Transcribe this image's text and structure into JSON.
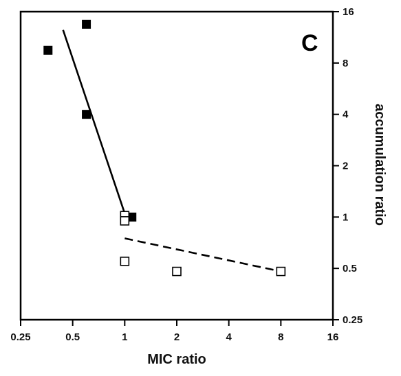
{
  "chart_data": {
    "type": "scatter",
    "panel_label": "C",
    "xlabel": "MIC ratio",
    "ylabel": "accumulation ratio",
    "x_scale": "log2",
    "y_scale": "log2",
    "xlim": [
      0.25,
      16
    ],
    "ylim": [
      0.25,
      16
    ],
    "y_axis_position": "right",
    "x_ticks": [
      "0.25",
      "0.5",
      "1",
      "2",
      "4",
      "8",
      "16"
    ],
    "y_ticks": [
      "0.25",
      "0.5",
      "1",
      "2",
      "4",
      "8",
      "16"
    ],
    "grid": false,
    "series": [
      {
        "marker": "filled-square",
        "color": "#000000",
        "points": [
          {
            "x": 0.36,
            "y": 9.5
          },
          {
            "x": 0.6,
            "y": 13.5
          },
          {
            "x": 0.6,
            "y": 4.0
          },
          {
            "x": 1.1,
            "y": 1.0
          }
        ]
      },
      {
        "marker": "open-square",
        "color": "#000000",
        "points": [
          {
            "x": 1.0,
            "y": 1.02
          },
          {
            "x": 1.0,
            "y": 0.95
          },
          {
            "x": 1.0,
            "y": 0.55
          },
          {
            "x": 2.0,
            "y": 0.48
          },
          {
            "x": 8.0,
            "y": 0.48
          }
        ]
      }
    ],
    "fit_lines": [
      {
        "style": "solid",
        "x": [
          0.44,
          1.0
        ],
        "y": [
          12.5,
          1.05
        ]
      },
      {
        "style": "dashed",
        "x": [
          1.0,
          8.0
        ],
        "y": [
          0.75,
          0.48
        ]
      }
    ]
  }
}
